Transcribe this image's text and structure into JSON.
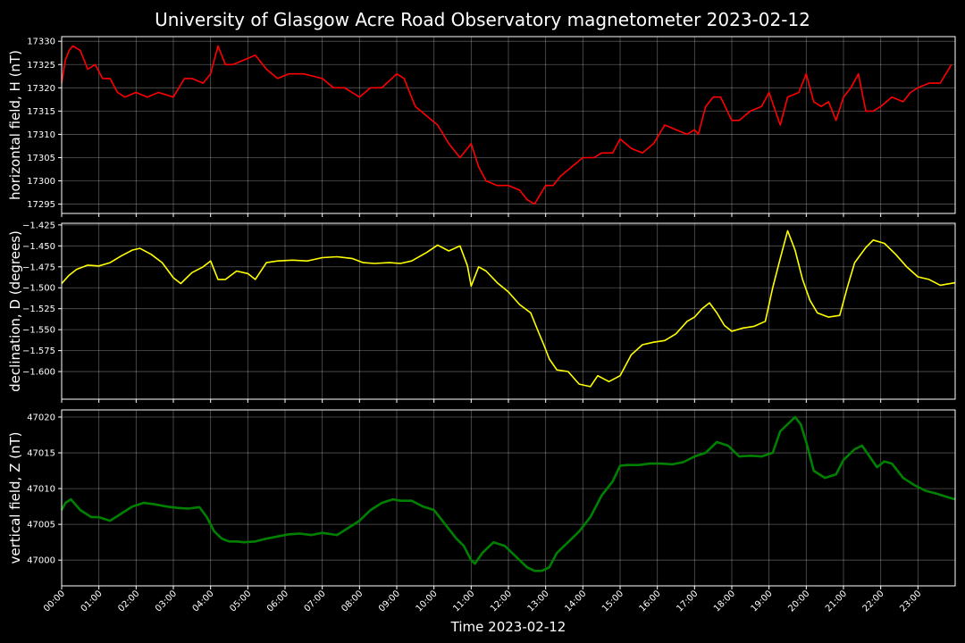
{
  "title": "University of Glasgow Acre Road Observatory magnetometer 2023-02-12",
  "xlabel": "Time 2023-02-12",
  "colors": {
    "background": "#000000",
    "H": "#ff0000",
    "D": "#ffff00",
    "Z": "#008000",
    "grid": "#5a5a5a"
  },
  "chart_data": [
    {
      "type": "line",
      "name": "H",
      "ylabel": "horizontal field, H (nT)",
      "color": "#ff0000",
      "ylim": [
        17293,
        17331
      ],
      "yticks": [
        17295,
        17300,
        17305,
        17310,
        17315,
        17320,
        17325,
        17330
      ],
      "ytick_labels": [
        "17295",
        "17300",
        "17305",
        "17310",
        "17315",
        "17320",
        "17325",
        "17330"
      ],
      "xlim": [
        0,
        24
      ],
      "x": [
        0.0,
        0.1,
        0.2,
        0.3,
        0.5,
        0.7,
        0.9,
        1.1,
        1.3,
        1.5,
        1.7,
        2.0,
        2.3,
        2.6,
        3.0,
        3.3,
        3.5,
        3.8,
        4.0,
        4.2,
        4.4,
        4.6,
        4.9,
        5.2,
        5.5,
        5.8,
        6.1,
        6.5,
        7.0,
        7.3,
        7.6,
        8.0,
        8.3,
        8.6,
        9.0,
        9.2,
        9.5,
        9.8,
        10.1,
        10.4,
        10.7,
        10.9,
        11.0,
        11.2,
        11.4,
        11.7,
        12.0,
        12.3,
        12.5,
        12.7,
        12.85,
        13.0,
        13.2,
        13.4,
        13.7,
        14.0,
        14.3,
        14.5,
        14.8,
        15.0,
        15.3,
        15.6,
        15.9,
        16.2,
        16.5,
        16.8,
        17.0,
        17.1,
        17.3,
        17.5,
        17.7,
        18.0,
        18.2,
        18.5,
        18.8,
        19.0,
        19.3,
        19.5,
        19.8,
        20.0,
        20.2,
        20.4,
        20.6,
        20.8,
        21.0,
        21.2,
        21.4,
        21.6,
        21.8,
        22.0,
        22.3,
        22.6,
        22.8,
        23.0,
        23.3,
        23.6,
        23.9
      ],
      "y": [
        17321,
        17326,
        17328,
        17329,
        17328,
        17324,
        17325,
        17322,
        17322,
        17319,
        17318,
        17319,
        17318,
        17319,
        17318,
        17322,
        17322,
        17321,
        17323,
        17329,
        17325,
        17325,
        17326,
        17327,
        17324,
        17322,
        17323,
        17323,
        17322,
        17320,
        17320,
        17318,
        17320,
        17320,
        17323,
        17322,
        17316,
        17314,
        17312,
        17308,
        17305,
        17307,
        17308,
        17303,
        17300,
        17299,
        17299,
        17298,
        17296,
        17295,
        17297,
        17299,
        17299,
        17301,
        17303,
        17305,
        17305,
        17306,
        17306,
        17309,
        17307,
        17306,
        17308,
        17312,
        17311,
        17310,
        17311,
        17310,
        17316,
        17318,
        17318,
        17313,
        17313,
        17315,
        17316,
        17319,
        17312,
        17318,
        17319,
        17323,
        17317,
        17316,
        17317,
        17313,
        17318,
        17320,
        17323,
        17315,
        17315,
        17316,
        17318,
        17317,
        17319,
        17320,
        17321,
        17321,
        17325
      ]
    },
    {
      "type": "line",
      "name": "D",
      "ylabel": "declination, D (degrees)",
      "color": "#ffff00",
      "ylim": [
        -1.633,
        -1.423
      ],
      "yticks": [
        -1.6,
        -1.575,
        -1.55,
        -1.525,
        -1.5,
        -1.475,
        -1.45,
        -1.425
      ],
      "ytick_labels": [
        "−1.600",
        "−1.575",
        "−1.550",
        "−1.525",
        "−1.500",
        "−1.475",
        "−1.450",
        "−1.425"
      ],
      "xlim": [
        0,
        24
      ],
      "x": [
        0.0,
        0.2,
        0.4,
        0.7,
        1.0,
        1.3,
        1.6,
        1.9,
        2.1,
        2.4,
        2.7,
        3.0,
        3.2,
        3.5,
        3.8,
        4.0,
        4.2,
        4.4,
        4.7,
        5.0,
        5.2,
        5.5,
        5.8,
        6.2,
        6.6,
        7.0,
        7.4,
        7.8,
        8.1,
        8.4,
        8.8,
        9.1,
        9.4,
        9.8,
        10.1,
        10.4,
        10.7,
        10.9,
        11.0,
        11.2,
        11.4,
        11.7,
        12.0,
        12.3,
        12.6,
        12.8,
        12.95,
        13.1,
        13.3,
        13.6,
        13.9,
        14.2,
        14.4,
        14.7,
        15.0,
        15.3,
        15.6,
        15.9,
        16.2,
        16.5,
        16.8,
        17.0,
        17.2,
        17.4,
        17.6,
        17.8,
        18.0,
        18.3,
        18.6,
        18.9,
        19.1,
        19.3,
        19.5,
        19.7,
        19.9,
        20.1,
        20.3,
        20.6,
        20.9,
        21.1,
        21.3,
        21.6,
        21.8,
        22.1,
        22.4,
        22.7,
        23.0,
        23.3,
        23.6,
        24.0
      ],
      "y": [
        -1.495,
        -1.485,
        -1.478,
        -1.473,
        -1.474,
        -1.47,
        -1.462,
        -1.455,
        -1.453,
        -1.46,
        -1.47,
        -1.488,
        -1.495,
        -1.482,
        -1.475,
        -1.468,
        -1.49,
        -1.49,
        -1.48,
        -1.483,
        -1.49,
        -1.47,
        -1.468,
        -1.467,
        -1.468,
        -1.464,
        -1.463,
        -1.465,
        -1.47,
        -1.471,
        -1.47,
        -1.471,
        -1.468,
        -1.458,
        -1.449,
        -1.456,
        -1.45,
        -1.474,
        -1.498,
        -1.475,
        -1.48,
        -1.494,
        -1.505,
        -1.52,
        -1.53,
        -1.552,
        -1.568,
        -1.585,
        -1.598,
        -1.6,
        -1.615,
        -1.618,
        -1.605,
        -1.612,
        -1.605,
        -1.58,
        -1.568,
        -1.565,
        -1.563,
        -1.555,
        -1.54,
        -1.535,
        -1.525,
        -1.518,
        -1.53,
        -1.545,
        -1.552,
        -1.548,
        -1.546,
        -1.54,
        -1.5,
        -1.465,
        -1.432,
        -1.455,
        -1.49,
        -1.515,
        -1.53,
        -1.535,
        -1.533,
        -1.5,
        -1.47,
        -1.452,
        -1.443,
        -1.447,
        -1.46,
        -1.475,
        -1.487,
        -1.49,
        -1.497,
        -1.494
      ]
    },
    {
      "type": "line",
      "name": "Z",
      "ylabel": "vertical field, Z (nT)",
      "color": "#008000",
      "ylim": [
        46996.4,
        47021.0
      ],
      "yticks": [
        47000,
        47005,
        47010,
        47015,
        47020
      ],
      "ytick_labels": [
        "47000",
        "47005",
        "47010",
        "47015",
        "47020"
      ],
      "xlim": [
        0,
        24
      ],
      "x": [
        0.0,
        0.1,
        0.25,
        0.5,
        0.8,
        1.0,
        1.3,
        1.6,
        1.9,
        2.2,
        2.5,
        2.8,
        3.1,
        3.4,
        3.7,
        3.9,
        4.1,
        4.3,
        4.5,
        4.7,
        4.9,
        5.2,
        5.5,
        5.8,
        6.1,
        6.4,
        6.7,
        7.0,
        7.4,
        7.7,
        8.0,
        8.3,
        8.6,
        8.9,
        9.1,
        9.4,
        9.7,
        10.0,
        10.3,
        10.6,
        10.8,
        11.0,
        11.1,
        11.3,
        11.6,
        11.9,
        12.2,
        12.5,
        12.7,
        12.9,
        13.1,
        13.3,
        13.6,
        13.9,
        14.2,
        14.5,
        14.8,
        15.0,
        15.2,
        15.5,
        15.8,
        16.1,
        16.4,
        16.7,
        17.0,
        17.3,
        17.6,
        17.9,
        18.2,
        18.5,
        18.8,
        19.1,
        19.3,
        19.5,
        19.7,
        19.85,
        20.0,
        20.2,
        20.5,
        20.8,
        21.0,
        21.3,
        21.5,
        21.7,
        21.9,
        22.1,
        22.3,
        22.6,
        22.9,
        23.2,
        23.5,
        23.8,
        24.0
      ],
      "y": [
        47007,
        47008,
        47008.5,
        47007,
        47006,
        47006,
        47005.5,
        47006.5,
        47007.5,
        47008,
        47007.8,
        47007.5,
        47007.3,
        47007.2,
        47007.4,
        47006,
        47004,
        47003,
        47002.6,
        47002.6,
        47002.5,
        47002.6,
        47003,
        47003.3,
        47003.6,
        47003.7,
        47003.5,
        47003.8,
        47003.5,
        47004.5,
        47005.5,
        47007,
        47008,
        47008.5,
        47008.3,
        47008.3,
        47007.5,
        47007,
        47005,
        47003,
        47002,
        47000,
        46999.5,
        47001,
        47002.5,
        47002,
        47000.5,
        46999,
        46998.5,
        46998.5,
        46999,
        47001,
        47002.5,
        47004,
        47006,
        47009,
        47011,
        47013.2,
        47013.3,
        47013.3,
        47013.5,
        47013.5,
        47013.4,
        47013.7,
        47014.5,
        47015,
        47016.5,
        47016,
        47014.5,
        47014.6,
        47014.5,
        47015,
        47018,
        47019,
        47020,
        47019,
        47016.5,
        47012.5,
        47011.5,
        47012,
        47014,
        47015.5,
        47016,
        47014.5,
        47013,
        47013.8,
        47013.5,
        47011.5,
        47010.5,
        47009.7,
        47009.3,
        47008.8,
        47008.5
      ]
    }
  ],
  "xticks": [
    0,
    1,
    2,
    3,
    4,
    5,
    6,
    7,
    8,
    9,
    10,
    11,
    12,
    13,
    14,
    15,
    16,
    17,
    18,
    19,
    20,
    21,
    22,
    23
  ],
  "xtick_labels": [
    "00:00",
    "01:00",
    "02:00",
    "03:00",
    "04:00",
    "05:00",
    "06:00",
    "07:00",
    "08:00",
    "09:00",
    "10:00",
    "11:00",
    "12:00",
    "13:00",
    "14:00",
    "15:00",
    "16:00",
    "17:00",
    "18:00",
    "19:00",
    "20:00",
    "21:00",
    "22:00",
    "23:00"
  ]
}
